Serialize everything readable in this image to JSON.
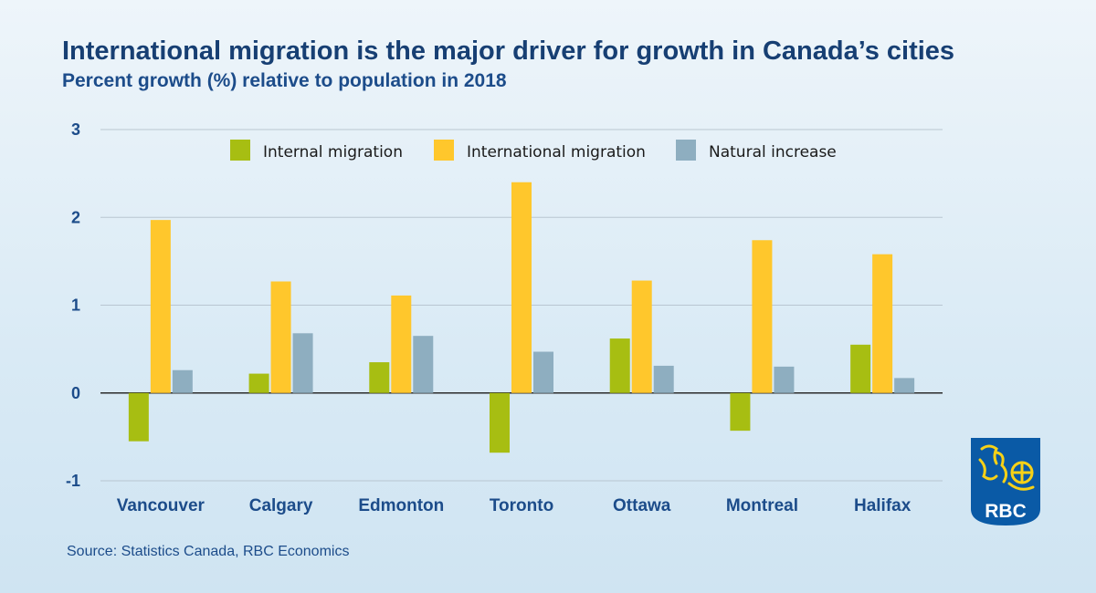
{
  "title": "International migration is the major driver for growth in Canada’s cities",
  "subtitle": "Percent growth (%) relative to population in 2018",
  "source": "Source: Statistics Canada, RBC Economics",
  "logo_text": "RBC",
  "colors": {
    "title": "#173f73",
    "axis_text": "#1c4c8a",
    "grid": "#b9c6d1",
    "logo_blue": "#0a5aa6",
    "logo_yellow": "#f7d117"
  },
  "chart_data": {
    "type": "bar",
    "categories": [
      "Vancouver",
      "Calgary",
      "Edmonton",
      "Toronto",
      "Ottawa",
      "Montreal",
      "Halifax"
    ],
    "series": [
      {
        "name": "Internal migration",
        "color": "#a7be12",
        "values": [
          -0.55,
          0.22,
          0.35,
          -0.68,
          0.62,
          -0.43,
          0.55
        ]
      },
      {
        "name": "International migration",
        "color": "#ffc72c",
        "values": [
          1.97,
          1.27,
          1.11,
          2.4,
          1.28,
          1.74,
          1.58
        ]
      },
      {
        "name": "Natural increase",
        "color": "#8eaec0",
        "values": [
          0.26,
          0.68,
          0.65,
          0.47,
          0.31,
          0.3,
          0.17
        ]
      }
    ],
    "ylim": [
      -1,
      3
    ],
    "yticks": [
      "-1",
      "0",
      "1",
      "2",
      "3"
    ],
    "grid": true,
    "legend_position": "top"
  }
}
